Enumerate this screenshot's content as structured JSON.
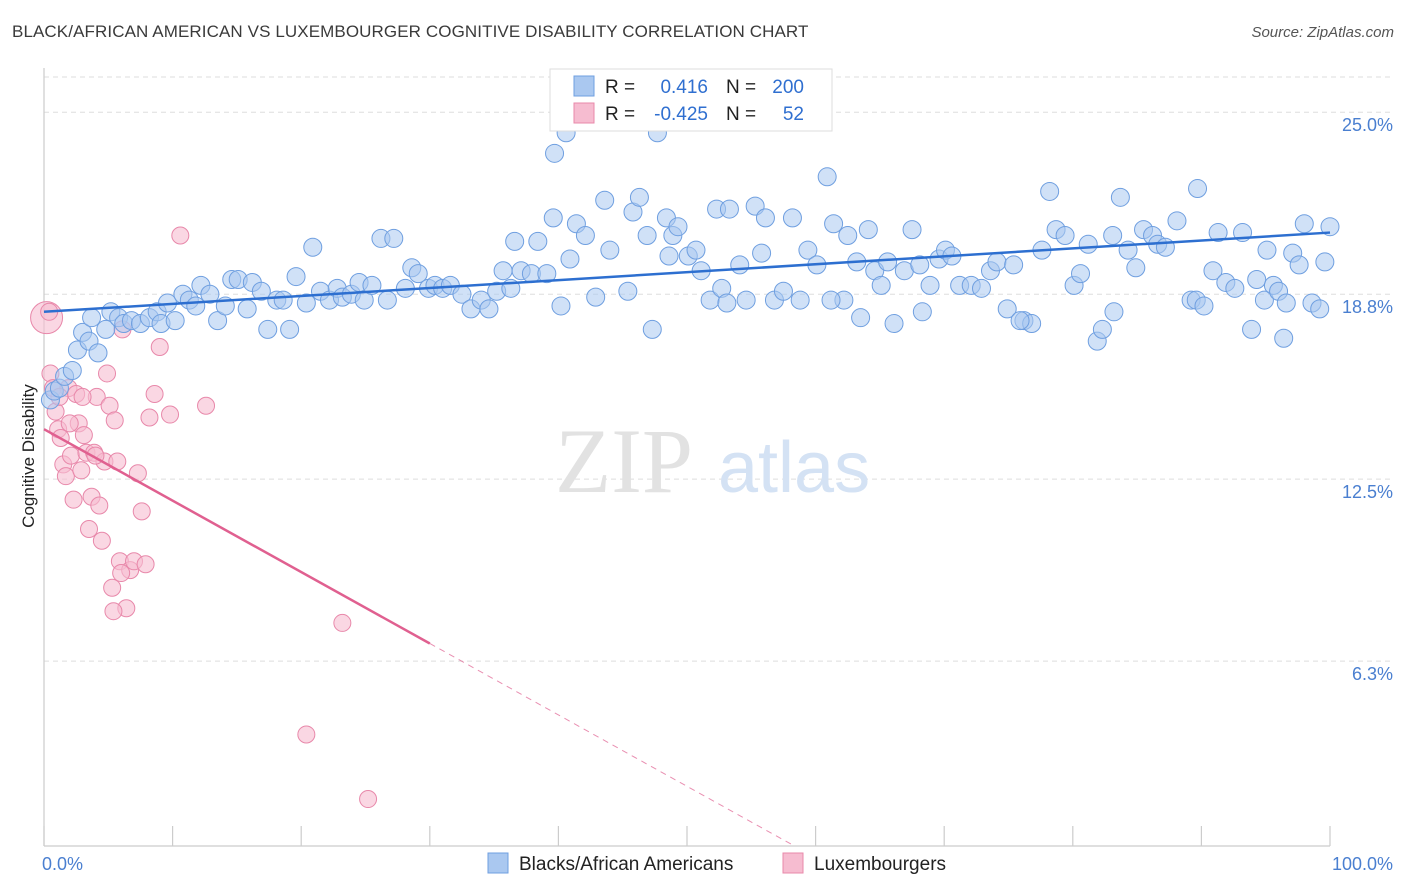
{
  "title": "BLACK/AFRICAN AMERICAN VS LUXEMBOURGER COGNITIVE DISABILITY CORRELATION CHART",
  "source": "Source: ZipAtlas.com",
  "watermark": {
    "zip": "ZIP",
    "atlas": "atlas"
  },
  "colors": {
    "blue_fill": "#aac8f0",
    "blue_stroke": "#6f9fe0",
    "blue_line": "#2d6fd0",
    "pink_fill": "#f6bcd0",
    "pink_stroke": "#e888aa",
    "pink_line": "#e06090",
    "grid": "#dddddd",
    "tick_text": "#4a7fd0"
  },
  "legend": {
    "rows": [
      {
        "r_label": "R =",
        "r_value": "0.416",
        "n_label": "N =",
        "n_value": "200"
      },
      {
        "r_label": "R =",
        "r_value": "-0.425",
        "n_label": "N =",
        "n_value": "52"
      }
    ]
  },
  "bottom_legend": [
    "Blacks/African Americans",
    "Luxembourgers"
  ],
  "chart_data": {
    "type": "scatter",
    "title": "BLACK/AFRICAN AMERICAN VS LUXEMBOURGER COGNITIVE DISABILITY CORRELATION CHART",
    "xlabel": "",
    "ylabel": "Cognitive Disability",
    "xlim": [
      0,
      100
    ],
    "ylim": [
      0,
      26.2
    ],
    "x_tick_labels": [
      "0.0%",
      "100.0%"
    ],
    "y_ticks": [
      6.3,
      12.5,
      18.8,
      25.0
    ],
    "y_tick_labels": [
      "6.3%",
      "12.5%",
      "18.8%",
      "25.0%"
    ],
    "grid": true,
    "legend_position": "top-center",
    "series": [
      {
        "name": "Blacks/African Americans",
        "color": "#aac8f0",
        "trend": {
          "x": [
            0,
            100
          ],
          "y": [
            18.2,
            20.9
          ]
        },
        "points": [
          [
            0.5,
            15.2
          ],
          [
            0.8,
            15.5
          ],
          [
            1.2,
            15.6
          ],
          [
            1.6,
            16.0
          ],
          [
            2.2,
            16.2
          ],
          [
            2.6,
            16.9
          ],
          [
            3.0,
            17.5
          ],
          [
            3.5,
            17.2
          ],
          [
            3.7,
            18.0
          ],
          [
            4.2,
            16.8
          ],
          [
            4.8,
            17.6
          ],
          [
            5.2,
            18.2
          ],
          [
            5.8,
            18.0
          ],
          [
            6.2,
            17.8
          ],
          [
            6.8,
            17.9
          ],
          [
            7.5,
            17.8
          ],
          [
            8.2,
            18.0
          ],
          [
            8.8,
            18.2
          ],
          [
            9.1,
            17.8
          ],
          [
            9.6,
            18.5
          ],
          [
            10.2,
            17.9
          ],
          [
            10.8,
            18.8
          ],
          [
            11.3,
            18.6
          ],
          [
            11.8,
            18.4
          ],
          [
            12.2,
            19.1
          ],
          [
            12.9,
            18.8
          ],
          [
            13.5,
            17.9
          ],
          [
            14.1,
            18.4
          ],
          [
            14.6,
            19.3
          ],
          [
            15.1,
            19.3
          ],
          [
            15.8,
            18.3
          ],
          [
            16.2,
            19.2
          ],
          [
            16.9,
            18.9
          ],
          [
            17.4,
            17.6
          ],
          [
            18.1,
            18.6
          ],
          [
            18.6,
            18.6
          ],
          [
            19.1,
            17.6
          ],
          [
            19.6,
            19.4
          ],
          [
            20.4,
            18.5
          ],
          [
            20.9,
            20.4
          ],
          [
            21.5,
            18.9
          ],
          [
            22.2,
            18.6
          ],
          [
            22.8,
            19.0
          ],
          [
            23.2,
            18.7
          ],
          [
            23.9,
            18.8
          ],
          [
            24.5,
            19.2
          ],
          [
            24.9,
            18.6
          ],
          [
            25.5,
            19.1
          ],
          [
            26.2,
            20.7
          ],
          [
            26.7,
            18.6
          ],
          [
            27.2,
            20.7
          ],
          [
            28.1,
            19.0
          ],
          [
            28.6,
            19.7
          ],
          [
            29.1,
            19.5
          ],
          [
            29.9,
            19.0
          ],
          [
            30.4,
            19.1
          ],
          [
            31.0,
            19.0
          ],
          [
            31.6,
            19.1
          ],
          [
            32.5,
            18.8
          ],
          [
            33.2,
            18.3
          ],
          [
            34.0,
            18.6
          ],
          [
            34.6,
            18.3
          ],
          [
            35.2,
            18.9
          ],
          [
            35.7,
            19.6
          ],
          [
            36.3,
            19.0
          ],
          [
            36.6,
            20.6
          ],
          [
            37.1,
            19.6
          ],
          [
            37.9,
            19.5
          ],
          [
            38.4,
            20.6
          ],
          [
            39.1,
            19.5
          ],
          [
            39.6,
            21.4
          ],
          [
            40.2,
            18.4
          ],
          [
            40.9,
            20.0
          ],
          [
            41.4,
            21.2
          ],
          [
            42.1,
            20.8
          ],
          [
            42.9,
            18.7
          ],
          [
            43.6,
            22.0
          ],
          [
            44.0,
            20.3
          ],
          [
            45.4,
            18.9
          ],
          [
            45.8,
            21.6
          ],
          [
            46.3,
            22.1
          ],
          [
            46.9,
            20.8
          ],
          [
            47.3,
            17.6
          ],
          [
            48.4,
            21.4
          ],
          [
            48.9,
            20.8
          ],
          [
            49.3,
            21.1
          ],
          [
            50.1,
            20.1
          ],
          [
            50.7,
            20.3
          ],
          [
            51.1,
            19.6
          ],
          [
            51.8,
            18.6
          ],
          [
            52.3,
            21.7
          ],
          [
            52.7,
            19.0
          ],
          [
            53.3,
            21.7
          ],
          [
            54.1,
            19.8
          ],
          [
            54.6,
            18.6
          ],
          [
            55.3,
            21.8
          ],
          [
            55.8,
            20.2
          ],
          [
            56.1,
            21.4
          ],
          [
            56.8,
            18.6
          ],
          [
            57.5,
            18.9
          ],
          [
            58.2,
            21.4
          ],
          [
            58.8,
            18.6
          ],
          [
            59.4,
            20.3
          ],
          [
            60.1,
            19.8
          ],
          [
            60.9,
            22.8
          ],
          [
            61.4,
            21.2
          ],
          [
            62.2,
            18.6
          ],
          [
            62.5,
            20.8
          ],
          [
            63.2,
            19.9
          ],
          [
            63.5,
            18.0
          ],
          [
            64.1,
            21.0
          ],
          [
            64.6,
            19.6
          ],
          [
            65.1,
            19.1
          ],
          [
            65.6,
            19.9
          ],
          [
            66.1,
            17.8
          ],
          [
            66.9,
            19.6
          ],
          [
            67.5,
            21.0
          ],
          [
            68.1,
            19.8
          ],
          [
            68.9,
            19.1
          ],
          [
            69.6,
            20.0
          ],
          [
            70.1,
            20.3
          ],
          [
            70.6,
            20.1
          ],
          [
            71.2,
            19.1
          ],
          [
            72.1,
            19.1
          ],
          [
            72.9,
            19.0
          ],
          [
            73.6,
            19.6
          ],
          [
            74.1,
            19.9
          ],
          [
            74.9,
            18.3
          ],
          [
            75.4,
            19.8
          ],
          [
            76.2,
            17.9
          ],
          [
            76.8,
            17.8
          ],
          [
            77.6,
            20.3
          ],
          [
            78.2,
            22.3
          ],
          [
            78.7,
            21.0
          ],
          [
            79.4,
            20.8
          ],
          [
            80.1,
            19.1
          ],
          [
            80.6,
            19.5
          ],
          [
            81.2,
            20.5
          ],
          [
            81.9,
            17.2
          ],
          [
            82.3,
            17.6
          ],
          [
            83.1,
            20.8
          ],
          [
            83.7,
            22.1
          ],
          [
            84.3,
            20.3
          ],
          [
            84.9,
            19.7
          ],
          [
            85.5,
            21.0
          ],
          [
            86.2,
            20.8
          ],
          [
            86.6,
            20.5
          ],
          [
            87.2,
            20.4
          ],
          [
            88.1,
            21.3
          ],
          [
            89.2,
            18.6
          ],
          [
            89.6,
            18.6
          ],
          [
            90.2,
            18.4
          ],
          [
            90.9,
            19.6
          ],
          [
            91.3,
            20.9
          ],
          [
            91.9,
            19.2
          ],
          [
            92.6,
            19.0
          ],
          [
            93.2,
            20.9
          ],
          [
            93.9,
            17.6
          ],
          [
            94.3,
            19.3
          ],
          [
            94.9,
            18.6
          ],
          [
            95.6,
            19.1
          ],
          [
            96.0,
            18.9
          ],
          [
            96.6,
            18.5
          ],
          [
            97.1,
            20.2
          ],
          [
            97.6,
            19.8
          ],
          [
            98.0,
            21.2
          ],
          [
            98.6,
            18.5
          ],
          [
            99.2,
            18.3
          ],
          [
            99.6,
            19.9
          ],
          [
            100.0,
            21.1
          ],
          [
            96.4,
            17.3
          ],
          [
            95.1,
            20.3
          ],
          [
            89.7,
            22.4
          ],
          [
            83.2,
            18.2
          ],
          [
            75.9,
            17.9
          ],
          [
            68.3,
            18.2
          ],
          [
            61.2,
            18.6
          ],
          [
            53.1,
            18.5
          ],
          [
            47.7,
            24.3
          ],
          [
            40.6,
            24.3
          ],
          [
            39.7,
            23.6
          ],
          [
            48.6,
            20.1
          ]
        ]
      },
      {
        "name": "Luxembourgers",
        "color": "#f6bcd0",
        "trend": {
          "x": [
            0,
            30
          ],
          "y": [
            14.2,
            6.9
          ]
        },
        "points": [
          [
            0.2,
            18.0
          ],
          [
            0.5,
            16.1
          ],
          [
            0.7,
            15.6
          ],
          [
            0.9,
            14.8
          ],
          [
            1.1,
            14.2
          ],
          [
            1.3,
            13.9
          ],
          [
            1.5,
            13.0
          ],
          [
            1.7,
            12.6
          ],
          [
            1.9,
            15.6
          ],
          [
            2.1,
            13.3
          ],
          [
            2.3,
            11.8
          ],
          [
            2.5,
            15.4
          ],
          [
            2.7,
            14.4
          ],
          [
            2.9,
            12.8
          ],
          [
            3.1,
            14.0
          ],
          [
            3.3,
            13.4
          ],
          [
            3.5,
            10.8
          ],
          [
            3.7,
            11.9
          ],
          [
            3.9,
            13.4
          ],
          [
            4.1,
            15.3
          ],
          [
            4.3,
            11.6
          ],
          [
            4.5,
            10.4
          ],
          [
            4.7,
            13.1
          ],
          [
            4.9,
            16.1
          ],
          [
            5.1,
            15.0
          ],
          [
            5.3,
            8.8
          ],
          [
            5.5,
            14.5
          ],
          [
            5.7,
            13.1
          ],
          [
            5.9,
            9.7
          ],
          [
            6.1,
            17.6
          ],
          [
            6.4,
            8.1
          ],
          [
            6.7,
            9.4
          ],
          [
            7.0,
            9.7
          ],
          [
            7.3,
            12.7
          ],
          [
            7.6,
            11.4
          ],
          [
            7.9,
            9.6
          ],
          [
            8.2,
            14.6
          ],
          [
            8.6,
            15.4
          ],
          [
            9.0,
            17.0
          ],
          [
            9.8,
            14.7
          ],
          [
            10.6,
            20.8
          ],
          [
            12.6,
            15.0
          ],
          [
            23.2,
            7.6
          ],
          [
            20.4,
            3.8
          ],
          [
            25.2,
            1.6
          ],
          [
            0.4,
            18.2
          ],
          [
            1.2,
            15.3
          ],
          [
            2.0,
            14.4
          ],
          [
            3.0,
            15.3
          ],
          [
            4.0,
            13.3
          ],
          [
            5.4,
            8.0
          ],
          [
            6.0,
            9.3
          ]
        ]
      }
    ]
  }
}
